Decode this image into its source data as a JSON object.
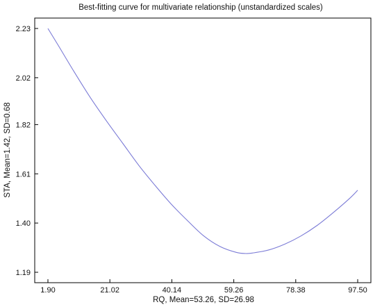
{
  "chart_data": {
    "type": "line",
    "title": "Best-fitting   curve for multivariate relationship (unstandardized scales)",
    "xlabel": "RQ, Mean=53.26,  SD=26.98",
    "ylabel": "STA, Mean=1.42,  SD=0.68",
    "xlim": [
      1.9,
      97.5
    ],
    "ylim": [
      1.19,
      2.23
    ],
    "x_ticks": [
      "1.90",
      "21.02",
      "40.14",
      "59.26",
      "78.38",
      "97.50"
    ],
    "y_ticks": [
      "1.19",
      "1.40",
      "1.61",
      "1.82",
      "2.02",
      "2.23"
    ],
    "grid": false,
    "series": [
      {
        "color": "#7b7bd6",
        "x": [
          1.9,
          5,
          10,
          15,
          20,
          25,
          30,
          35,
          40,
          45,
          50,
          55,
          60,
          63,
          65,
          70,
          75,
          80,
          85,
          90,
          95,
          97.5
        ],
        "y": [
          2.23,
          2.16,
          2.045,
          1.935,
          1.835,
          1.74,
          1.645,
          1.56,
          1.48,
          1.41,
          1.345,
          1.3,
          1.275,
          1.27,
          1.272,
          1.285,
          1.31,
          1.345,
          1.39,
          1.445,
          1.505,
          1.54
        ]
      }
    ]
  }
}
